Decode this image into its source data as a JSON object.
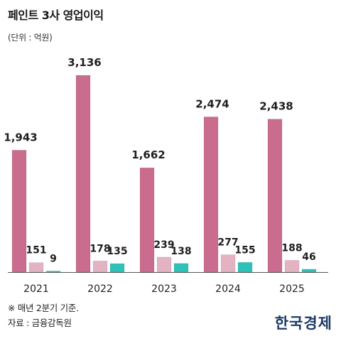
{
  "title": "페인트 3사 영업이익",
  "unit_label": "(단위 : 억원)",
  "note": "※ 매년 2분기 기준.",
  "source": "자료 : 금융감독원",
  "brand": "한국경제",
  "colors": {
    "series_1": "#c96c8e",
    "series_2": "#e3b3c2",
    "series_3": "#2cc2b8",
    "axis": "#555555"
  },
  "chart_data": {
    "type": "bar",
    "categories": [
      "2021",
      "2022",
      "2023",
      "2024",
      "2025"
    ],
    "series": [
      {
        "values": [
          1943,
          3136,
          1662,
          2474,
          2438
        ]
      },
      {
        "values": [
          151,
          178,
          239,
          277,
          188
        ]
      },
      {
        "values": [
          9,
          135,
          138,
          155,
          46
        ]
      }
    ],
    "value_labels": [
      [
        "1,943",
        "3,136",
        "1,662",
        "2,474",
        "2,438"
      ],
      [
        "151",
        "178",
        "239",
        "277",
        "188"
      ],
      [
        "9",
        "135",
        "138",
        "155",
        "46"
      ]
    ],
    "ylim": [
      0,
      3136
    ],
    "grid": false,
    "legend": "none"
  }
}
